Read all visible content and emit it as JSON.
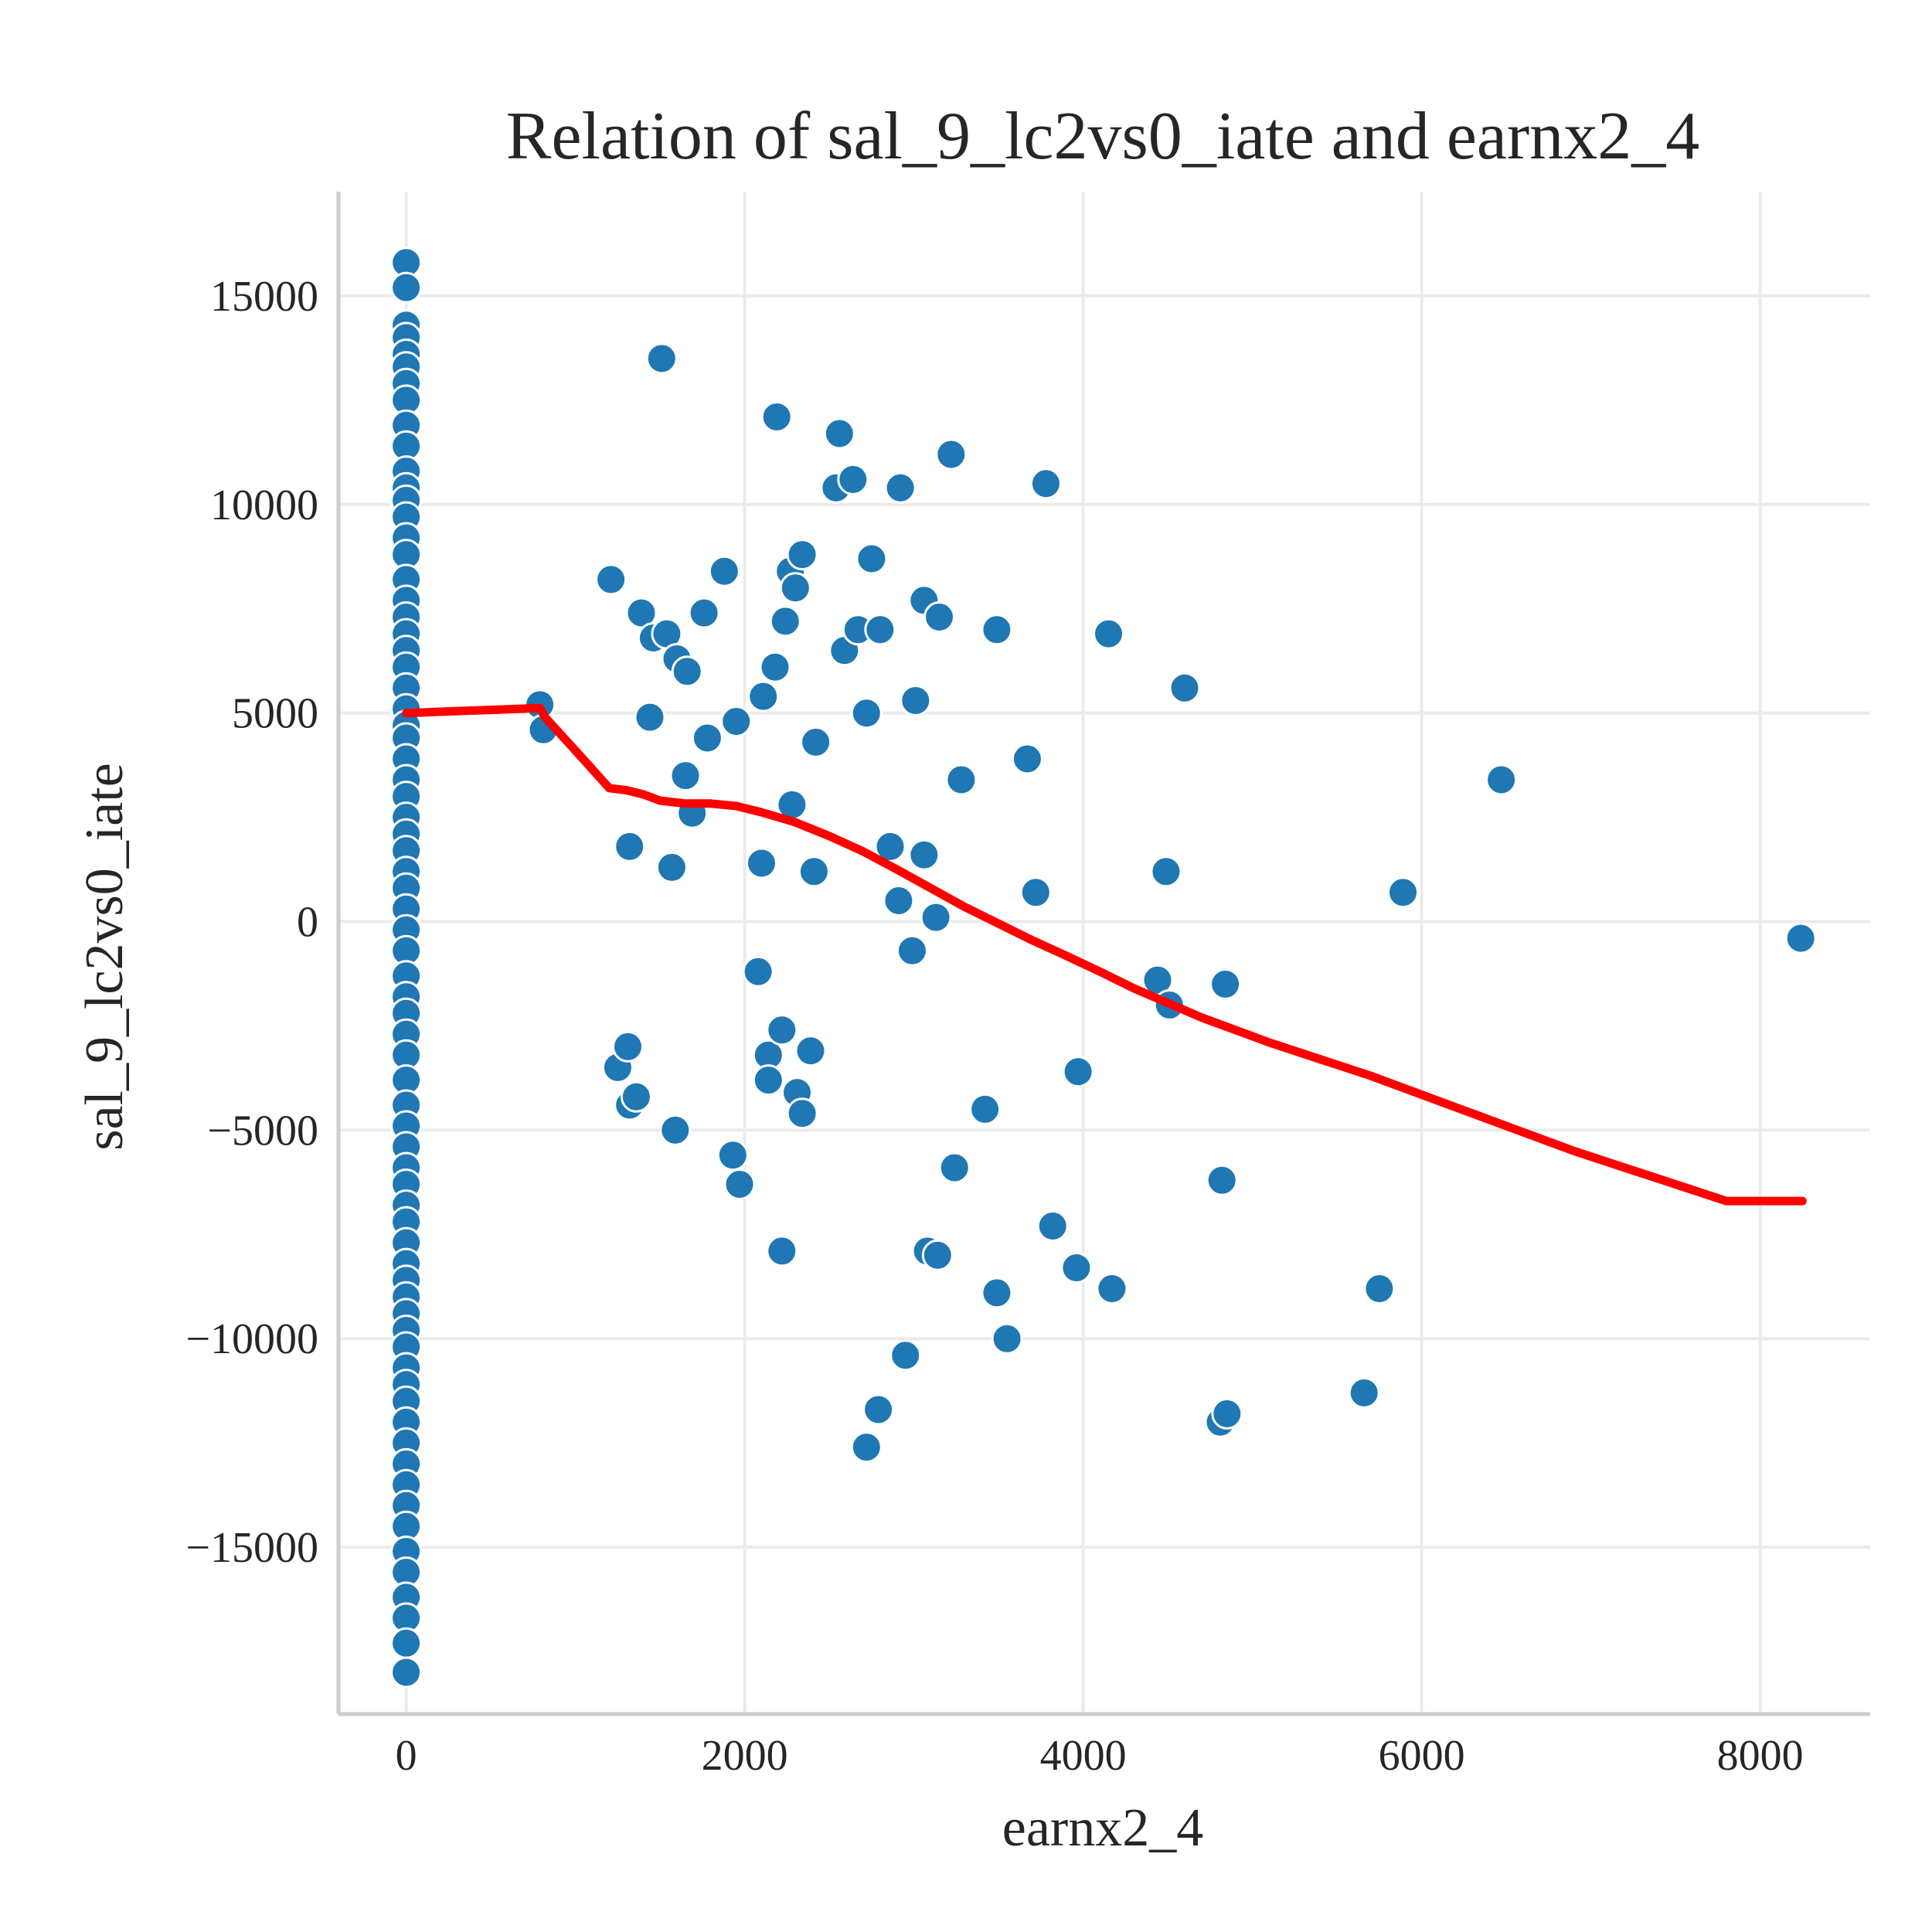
{
  "chart_data": {
    "type": "scatter",
    "title": "Relation of sal_9_lc2vs0_iate and earnx2_4",
    "xlabel": "earnx2_4",
    "ylabel": "sal_9_lc2vs0_iate",
    "xlim": [
      -400,
      8650
    ],
    "ylim": [
      -19000,
      17500
    ],
    "xticks": [
      0,
      2000,
      4000,
      6000,
      8000
    ],
    "yticks": [
      -15000,
      -10000,
      -5000,
      0,
      5000,
      10000,
      15000
    ],
    "xtick_labels": [
      "0",
      "2000",
      "4000",
      "6000",
      "8000"
    ],
    "ytick_labels": [
      "−15000",
      "−10000",
      "−5000",
      "0",
      "5000",
      "10000",
      "15000"
    ],
    "grid": true,
    "colors": {
      "points": "#1f77b4",
      "fit_line": "#ff0000"
    },
    "series": [
      {
        "kind": "scatter",
        "points": [
          [
            0,
            15800
          ],
          [
            0,
            15200
          ],
          [
            0,
            14300
          ],
          [
            0,
            14000
          ],
          [
            0,
            13600
          ],
          [
            0,
            13300
          ],
          [
            0,
            12900
          ],
          [
            0,
            12500
          ],
          [
            0,
            11900
          ],
          [
            0,
            11400
          ],
          [
            0,
            10800
          ],
          [
            0,
            10400
          ],
          [
            0,
            10100
          ],
          [
            0,
            9700
          ],
          [
            0,
            9200
          ],
          [
            0,
            8800
          ],
          [
            0,
            8200
          ],
          [
            0,
            7700
          ],
          [
            0,
            7300
          ],
          [
            0,
            6900
          ],
          [
            0,
            6500
          ],
          [
            0,
            6100
          ],
          [
            0,
            5600
          ],
          [
            0,
            5100
          ],
          [
            0,
            4700
          ],
          [
            0,
            4400
          ],
          [
            0,
            3900
          ],
          [
            0,
            3400
          ],
          [
            0,
            3000
          ],
          [
            0,
            2500
          ],
          [
            0,
            2100
          ],
          [
            0,
            1700
          ],
          [
            0,
            1200
          ],
          [
            0,
            800
          ],
          [
            0,
            300
          ],
          [
            0,
            -200
          ],
          [
            0,
            -700
          ],
          [
            0,
            -1300
          ],
          [
            0,
            -1800
          ],
          [
            0,
            -2200
          ],
          [
            0,
            -2700
          ],
          [
            0,
            -3200
          ],
          [
            0,
            -3800
          ],
          [
            0,
            -4400
          ],
          [
            0,
            -4900
          ],
          [
            0,
            -5400
          ],
          [
            0,
            -5900
          ],
          [
            0,
            -6300
          ],
          [
            0,
            -6800
          ],
          [
            0,
            -7200
          ],
          [
            0,
            -7700
          ],
          [
            0,
            -8200
          ],
          [
            0,
            -8600
          ],
          [
            0,
            -9000
          ],
          [
            0,
            -9400
          ],
          [
            0,
            -9800
          ],
          [
            0,
            -10200
          ],
          [
            0,
            -10700
          ],
          [
            0,
            -11100
          ],
          [
            0,
            -11500
          ],
          [
            0,
            -12000
          ],
          [
            0,
            -12500
          ],
          [
            0,
            -13000
          ],
          [
            0,
            -13500
          ],
          [
            0,
            -14000
          ],
          [
            0,
            -14500
          ],
          [
            0,
            -15100
          ],
          [
            0,
            -15600
          ],
          [
            0,
            -16200
          ],
          [
            0,
            -16700
          ],
          [
            0,
            -17300
          ],
          [
            0,
            -18000
          ],
          [
            790,
            5200
          ],
          [
            810,
            4600
          ],
          [
            1210,
            8200
          ],
          [
            1250,
            -3500
          ],
          [
            1310,
            -3000
          ],
          [
            1320,
            1800
          ],
          [
            1320,
            -4400
          ],
          [
            1360,
            -4200
          ],
          [
            1390,
            7400
          ],
          [
            1440,
            4900
          ],
          [
            1460,
            6800
          ],
          [
            1510,
            13500
          ],
          [
            1540,
            6900
          ],
          [
            1570,
            1300
          ],
          [
            1590,
            -5000
          ],
          [
            1600,
            6300
          ],
          [
            1650,
            3500
          ],
          [
            1660,
            6000
          ],
          [
            1690,
            2600
          ],
          [
            1760,
            7400
          ],
          [
            1780,
            4400
          ],
          [
            1880,
            8400
          ],
          [
            1930,
            -5600
          ],
          [
            1950,
            4800
          ],
          [
            1970,
            -6300
          ],
          [
            2080,
            -1200
          ],
          [
            2100,
            1400
          ],
          [
            2110,
            5400
          ],
          [
            2140,
            -3200
          ],
          [
            2140,
            -3800
          ],
          [
            2180,
            6100
          ],
          [
            2190,
            12100
          ],
          [
            2220,
            -2600
          ],
          [
            2220,
            -7900
          ],
          [
            2240,
            7200
          ],
          [
            2270,
            8400
          ],
          [
            2280,
            2800
          ],
          [
            2300,
            8000
          ],
          [
            2310,
            -4100
          ],
          [
            2340,
            8800
          ],
          [
            2340,
            -4600
          ],
          [
            2390,
            -3100
          ],
          [
            2410,
            1200
          ],
          [
            2420,
            4300
          ],
          [
            2540,
            10400
          ],
          [
            2560,
            11700
          ],
          [
            2590,
            6500
          ],
          [
            2640,
            10600
          ],
          [
            2670,
            7000
          ],
          [
            2720,
            -12600
          ],
          [
            2720,
            5000
          ],
          [
            2750,
            8700
          ],
          [
            2790,
            -11700
          ],
          [
            2800,
            7000
          ],
          [
            2860,
            1800
          ],
          [
            2910,
            500
          ],
          [
            2920,
            10400
          ],
          [
            2950,
            -10400
          ],
          [
            2990,
            -700
          ],
          [
            3010,
            5300
          ],
          [
            3060,
            1600
          ],
          [
            3060,
            7700
          ],
          [
            3080,
            -7900
          ],
          [
            3130,
            100
          ],
          [
            3140,
            -8000
          ],
          [
            3150,
            7300
          ],
          [
            3220,
            11200
          ],
          [
            3240,
            -5900
          ],
          [
            3280,
            3400
          ],
          [
            3420,
            -4500
          ],
          [
            3490,
            7000
          ],
          [
            3490,
            -8900
          ],
          [
            3550,
            -10000
          ],
          [
            3670,
            3900
          ],
          [
            3720,
            700
          ],
          [
            3780,
            10500
          ],
          [
            3820,
            -7300
          ],
          [
            3960,
            -8300
          ],
          [
            3970,
            -3600
          ],
          [
            4150,
            6900
          ],
          [
            4170,
            -8800
          ],
          [
            4440,
            -1400
          ],
          [
            4490,
            1200
          ],
          [
            4510,
            -2000
          ],
          [
            4600,
            5600
          ],
          [
            4810,
            -12000
          ],
          [
            4820,
            -6200
          ],
          [
            4840,
            -1500
          ],
          [
            4850,
            -11800
          ],
          [
            5660,
            -11300
          ],
          [
            5750,
            -8800
          ],
          [
            5890,
            700
          ],
          [
            6470,
            3400
          ],
          [
            8240,
            -400
          ]
        ]
      },
      {
        "kind": "line",
        "points": [
          [
            0,
            5000
          ],
          [
            200,
            5030
          ],
          [
            400,
            5060
          ],
          [
            600,
            5090
          ],
          [
            790,
            5120
          ],
          [
            820,
            4900
          ],
          [
            1000,
            4100
          ],
          [
            1200,
            3200
          ],
          [
            1300,
            3150
          ],
          [
            1400,
            3050
          ],
          [
            1500,
            2900
          ],
          [
            1650,
            2830
          ],
          [
            1800,
            2830
          ],
          [
            1950,
            2770
          ],
          [
            2100,
            2620
          ],
          [
            2300,
            2380
          ],
          [
            2500,
            2050
          ],
          [
            2700,
            1680
          ],
          [
            2900,
            1250
          ],
          [
            3100,
            800
          ],
          [
            3300,
            350
          ],
          [
            3500,
            -50
          ],
          [
            3700,
            -450
          ],
          [
            3900,
            -820
          ],
          [
            4100,
            -1200
          ],
          [
            4300,
            -1600
          ],
          [
            4500,
            -1950
          ],
          [
            4700,
            -2300
          ],
          [
            4900,
            -2600
          ],
          [
            5100,
            -2900
          ],
          [
            5400,
            -3300
          ],
          [
            5700,
            -3700
          ],
          [
            6000,
            -4150
          ],
          [
            6300,
            -4600
          ],
          [
            6600,
            -5050
          ],
          [
            6900,
            -5500
          ],
          [
            7200,
            -5900
          ],
          [
            7500,
            -6300
          ],
          [
            7800,
            -6700
          ],
          [
            8250,
            -6700
          ]
        ]
      }
    ]
  }
}
